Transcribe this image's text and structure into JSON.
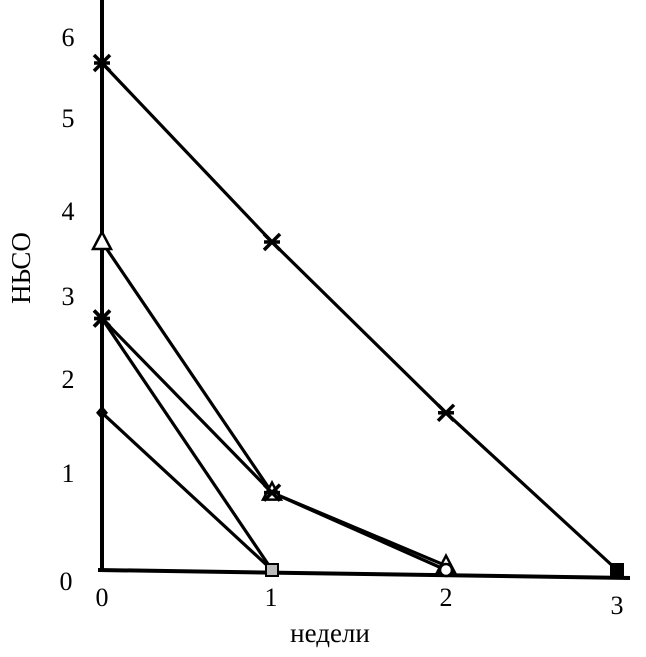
{
  "chart_data": {
    "type": "line",
    "xlabel": "недели",
    "ylabel": "НЬСО",
    "xlim": [
      0,
      3
    ],
    "ylim": [
      0,
      6.4
    ],
    "x_ticks": [
      "0",
      "1",
      "2",
      "3"
    ],
    "y_ticks": [
      "0",
      "1",
      "2",
      "3",
      "4",
      "5",
      "6"
    ],
    "legend": "none",
    "grid": false,
    "series": [
      {
        "marker": "x-cross",
        "x": [
          0,
          1,
          2,
          3
        ],
        "y": [
          5.8,
          3.8,
          1.8,
          0.0
        ]
      },
      {
        "marker": "triangle",
        "x": [
          0,
          1,
          2
        ],
        "y": [
          3.8,
          0.9,
          0.05
        ]
      },
      {
        "marker": "x-cross",
        "x": [
          0,
          1,
          2
        ],
        "y": [
          2.9,
          0.9,
          0.0
        ]
      },
      {
        "marker": "x-cross",
        "x": [
          0,
          1
        ],
        "y": [
          2.9,
          0.0
        ]
      },
      {
        "marker": "diamond",
        "x": [
          0,
          1
        ],
        "y": [
          1.8,
          0.0
        ]
      }
    ],
    "end_markers": [
      {
        "marker": "square-light",
        "x": 1,
        "y": 0.0
      },
      {
        "marker": "circle",
        "x": 2,
        "y": 0.0
      },
      {
        "marker": "square",
        "x": 3,
        "y": 0.0
      }
    ]
  }
}
